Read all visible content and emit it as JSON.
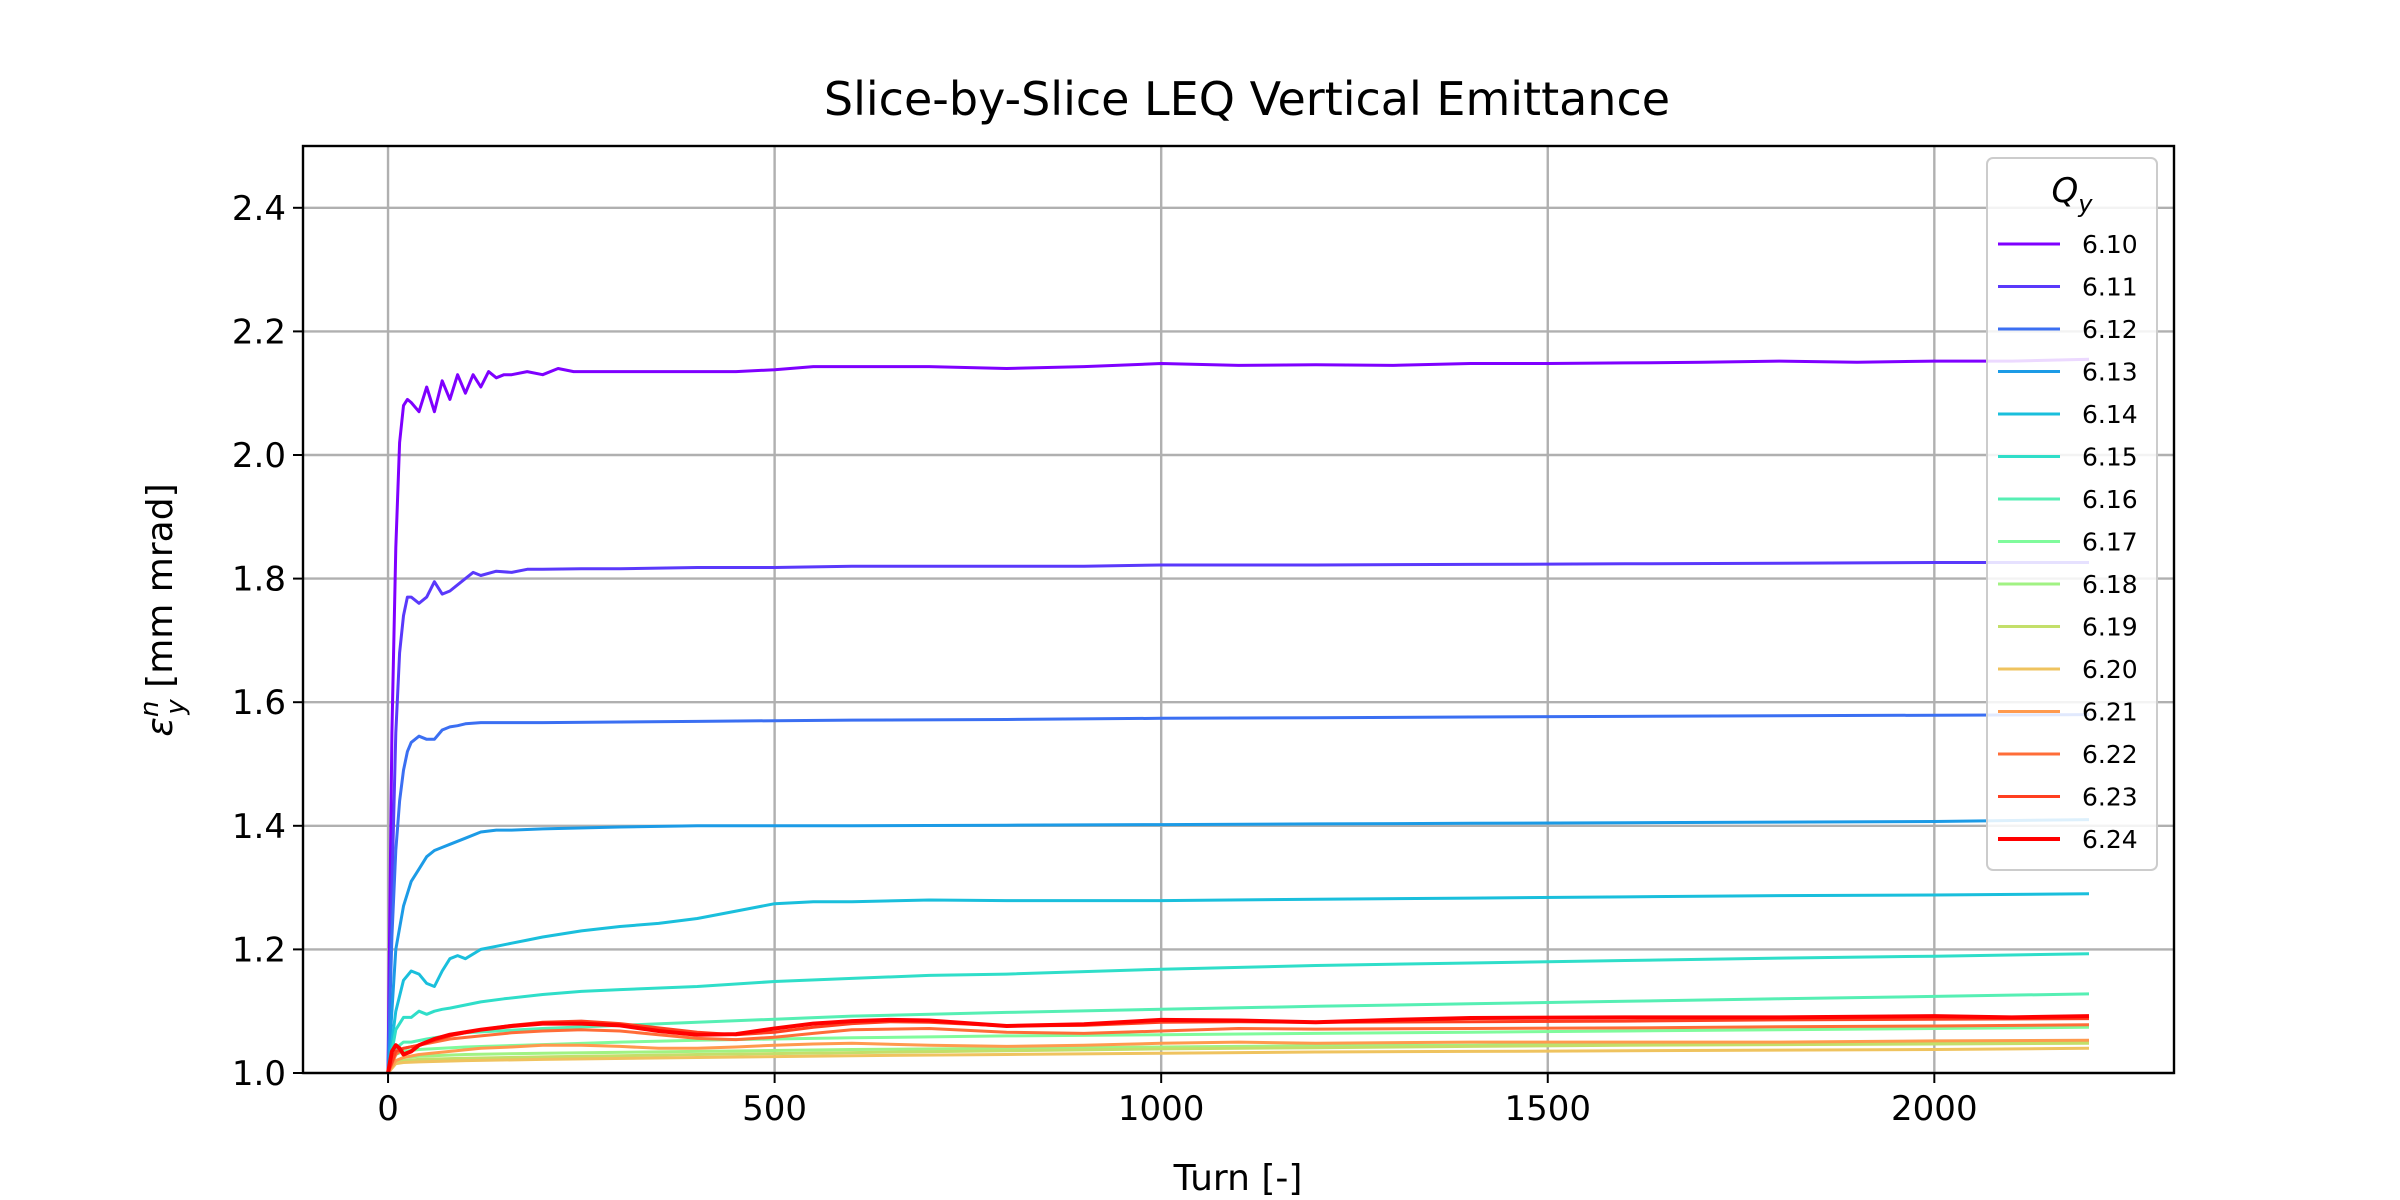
{
  "chart_data": {
    "type": "line",
    "title": "Slice-by-Slice LEQ Vertical Emittance",
    "xlabel": "Turn [-]",
    "ylabel_main": "ε",
    "ylabel_sup": "n",
    "ylabel_sub": "y",
    "ylabel_unit": " [mm mrad]",
    "xlim": [
      -110,
      2310
    ],
    "ylim": [
      1.0,
      2.5
    ],
    "xticks": [
      0,
      500,
      1000,
      1500,
      2000
    ],
    "yticks": [
      1.0,
      1.2,
      1.4,
      1.6,
      1.8,
      2.0,
      2.2,
      2.4
    ],
    "xtick_labels": [
      "0",
      "500",
      "1000",
      "1500",
      "2000"
    ],
    "ytick_labels": [
      "1.0",
      "1.2",
      "1.4",
      "1.6",
      "1.8",
      "2.0",
      "2.2",
      "2.4"
    ],
    "grid": true,
    "legend": {
      "title_main": "Q",
      "title_sub": "y",
      "placement": "upper right"
    },
    "series": [
      {
        "name": "6.10",
        "color": "#7f00ff",
        "x": [
          0,
          5,
          10,
          15,
          20,
          25,
          30,
          40,
          50,
          60,
          70,
          80,
          90,
          100,
          110,
          120,
          130,
          140,
          150,
          160,
          180,
          200,
          220,
          240,
          260,
          280,
          300,
          350,
          400,
          450,
          500,
          550,
          600,
          700,
          800,
          900,
          1000,
          1100,
          1200,
          1300,
          1400,
          1500,
          1600,
          1700,
          1800,
          1900,
          2000,
          2100,
          2200
        ],
        "y": [
          1.0,
          1.55,
          1.85,
          2.02,
          2.08,
          2.09,
          2.085,
          2.07,
          2.11,
          2.07,
          2.12,
          2.09,
          2.13,
          2.1,
          2.13,
          2.11,
          2.135,
          2.125,
          2.13,
          2.13,
          2.135,
          2.13,
          2.14,
          2.135,
          2.135,
          2.135,
          2.135,
          2.135,
          2.135,
          2.135,
          2.138,
          2.143,
          2.143,
          2.143,
          2.14,
          2.143,
          2.148,
          2.145,
          2.146,
          2.145,
          2.148,
          2.148,
          2.149,
          2.15,
          2.152,
          2.15,
          2.152,
          2.152,
          2.155
        ]
      },
      {
        "name": "6.11",
        "color": "#5a39fb",
        "x": [
          0,
          5,
          10,
          15,
          20,
          25,
          30,
          40,
          50,
          60,
          70,
          80,
          90,
          100,
          110,
          120,
          140,
          160,
          180,
          200,
          250,
          300,
          400,
          500,
          600,
          700,
          800,
          900,
          1000,
          1200,
          1400,
          1600,
          1800,
          2000,
          2200
        ],
        "y": [
          1.0,
          1.3,
          1.55,
          1.68,
          1.74,
          1.77,
          1.77,
          1.76,
          1.77,
          1.795,
          1.775,
          1.78,
          1.79,
          1.8,
          1.81,
          1.805,
          1.812,
          1.81,
          1.815,
          1.815,
          1.816,
          1.816,
          1.818,
          1.818,
          1.82,
          1.82,
          1.82,
          1.82,
          1.822,
          1.822,
          1.823,
          1.824,
          1.825,
          1.826,
          1.826
        ]
      },
      {
        "name": "6.12",
        "color": "#3b6ff2",
        "x": [
          0,
          5,
          10,
          15,
          20,
          25,
          30,
          40,
          50,
          60,
          70,
          80,
          90,
          100,
          120,
          150,
          200,
          300,
          400,
          500,
          600,
          800,
          1000,
          1200,
          1400,
          1600,
          1800,
          2000,
          2200
        ],
        "y": [
          1.0,
          1.22,
          1.36,
          1.44,
          1.49,
          1.52,
          1.535,
          1.545,
          1.54,
          1.54,
          1.555,
          1.56,
          1.562,
          1.565,
          1.567,
          1.567,
          1.567,
          1.568,
          1.569,
          1.57,
          1.571,
          1.572,
          1.574,
          1.575,
          1.576,
          1.577,
          1.578,
          1.579,
          1.58
        ]
      },
      {
        "name": "6.13",
        "color": "#1c9be6",
        "x": [
          0,
          10,
          20,
          30,
          40,
          50,
          60,
          70,
          80,
          100,
          120,
          140,
          160,
          200,
          300,
          400,
          500,
          600,
          800,
          1000,
          1200,
          1400,
          1600,
          1800,
          2000,
          2200
        ],
        "y": [
          1.0,
          1.2,
          1.27,
          1.31,
          1.33,
          1.35,
          1.36,
          1.365,
          1.37,
          1.38,
          1.39,
          1.393,
          1.393,
          1.395,
          1.398,
          1.4,
          1.4,
          1.4,
          1.401,
          1.402,
          1.403,
          1.404,
          1.405,
          1.406,
          1.407,
          1.41
        ]
      },
      {
        "name": "6.14",
        "color": "#1abfdc",
        "x": [
          0,
          10,
          20,
          30,
          40,
          50,
          60,
          70,
          80,
          90,
          100,
          120,
          140,
          160,
          180,
          200,
          250,
          300,
          350,
          400,
          450,
          500,
          550,
          600,
          700,
          800,
          900,
          1000,
          1200,
          1400,
          1600,
          1800,
          2000,
          2200
        ],
        "y": [
          1.0,
          1.1,
          1.15,
          1.165,
          1.16,
          1.145,
          1.14,
          1.165,
          1.185,
          1.19,
          1.185,
          1.2,
          1.205,
          1.21,
          1.215,
          1.22,
          1.23,
          1.237,
          1.242,
          1.25,
          1.262,
          1.274,
          1.277,
          1.277,
          1.28,
          1.279,
          1.279,
          1.279,
          1.281,
          1.283,
          1.285,
          1.287,
          1.288,
          1.29
        ]
      },
      {
        "name": "6.15",
        "color": "#2fdec9",
        "x": [
          0,
          10,
          20,
          30,
          40,
          50,
          60,
          70,
          80,
          100,
          120,
          150,
          200,
          250,
          300,
          400,
          500,
          600,
          700,
          800,
          1000,
          1200,
          1400,
          1600,
          1800,
          2000,
          2200
        ],
        "y": [
          1.0,
          1.07,
          1.09,
          1.09,
          1.1,
          1.095,
          1.1,
          1.103,
          1.105,
          1.11,
          1.115,
          1.12,
          1.127,
          1.132,
          1.135,
          1.14,
          1.148,
          1.153,
          1.158,
          1.16,
          1.168,
          1.174,
          1.178,
          1.182,
          1.186,
          1.189,
          1.193
        ]
      },
      {
        "name": "6.16",
        "color": "#56efb4",
        "x": [
          0,
          10,
          20,
          30,
          50,
          100,
          200,
          300,
          400,
          500,
          600,
          800,
          1000,
          1200,
          1400,
          1600,
          1800,
          2000,
          2200
        ],
        "y": [
          1.0,
          1.04,
          1.05,
          1.05,
          1.055,
          1.065,
          1.072,
          1.077,
          1.082,
          1.087,
          1.092,
          1.098,
          1.103,
          1.108,
          1.112,
          1.116,
          1.12,
          1.124,
          1.128
        ]
      },
      {
        "name": "6.17",
        "color": "#80fb9c",
        "x": [
          0,
          10,
          20,
          40,
          100,
          200,
          300,
          400,
          500,
          600,
          800,
          1000,
          1200,
          1400,
          1600,
          1800,
          2000,
          2200
        ],
        "y": [
          1.0,
          1.03,
          1.035,
          1.038,
          1.042,
          1.046,
          1.05,
          1.053,
          1.055,
          1.057,
          1.06,
          1.062,
          1.064,
          1.066,
          1.068,
          1.07,
          1.072,
          1.074
        ]
      },
      {
        "name": "6.18",
        "color": "#a1f283",
        "x": [
          0,
          10,
          20,
          40,
          100,
          200,
          400,
          600,
          800,
          1000,
          1200,
          1400,
          1600,
          1800,
          2000,
          2200
        ],
        "y": [
          1.0,
          1.02,
          1.025,
          1.027,
          1.03,
          1.032,
          1.035,
          1.038,
          1.04,
          1.042,
          1.044,
          1.045,
          1.047,
          1.049,
          1.05,
          1.052
        ]
      },
      {
        "name": "6.19",
        "color": "#c3df6a",
        "x": [
          0,
          10,
          20,
          40,
          100,
          200,
          400,
          600,
          800,
          1000,
          1200,
          1400,
          1600,
          1800,
          2000,
          2200
        ],
        "y": [
          1.0,
          1.018,
          1.02,
          1.022,
          1.024,
          1.026,
          1.03,
          1.033,
          1.036,
          1.039,
          1.041,
          1.043,
          1.045,
          1.046,
          1.047,
          1.048
        ]
      },
      {
        "name": "6.20",
        "color": "#efc35f",
        "x": [
          0,
          10,
          20,
          40,
          100,
          200,
          400,
          600,
          800,
          1000,
          1200,
          1400,
          1600,
          1800,
          2000,
          2200
        ],
        "y": [
          1.0,
          1.015,
          1.017,
          1.018,
          1.02,
          1.022,
          1.025,
          1.028,
          1.03,
          1.032,
          1.034,
          1.035,
          1.036,
          1.037,
          1.038,
          1.04
        ]
      },
      {
        "name": "6.21",
        "color": "#ff9a4e",
        "x": [
          0,
          10,
          20,
          40,
          80,
          120,
          160,
          200,
          250,
          300,
          350,
          400,
          450,
          500,
          550,
          600,
          700,
          800,
          900,
          1000,
          1100,
          1200,
          1400,
          1600,
          1800,
          2000,
          2200
        ],
        "y": [
          1.0,
          1.02,
          1.025,
          1.03,
          1.035,
          1.04,
          1.042,
          1.045,
          1.045,
          1.043,
          1.04,
          1.04,
          1.042,
          1.045,
          1.047,
          1.048,
          1.045,
          1.043,
          1.045,
          1.048,
          1.05,
          1.048,
          1.05,
          1.05,
          1.05,
          1.052,
          1.053
        ]
      },
      {
        "name": "6.22",
        "color": "#ff6d38",
        "x": [
          0,
          10,
          20,
          40,
          80,
          120,
          160,
          200,
          250,
          300,
          350,
          400,
          450,
          500,
          550,
          600,
          700,
          800,
          900,
          1000,
          1100,
          1200,
          1400,
          1600,
          1800,
          2000,
          2200
        ],
        "y": [
          1.0,
          1.03,
          1.04,
          1.045,
          1.055,
          1.06,
          1.065,
          1.068,
          1.07,
          1.068,
          1.062,
          1.056,
          1.054,
          1.058,
          1.064,
          1.07,
          1.072,
          1.066,
          1.064,
          1.068,
          1.072,
          1.071,
          1.072,
          1.073,
          1.075,
          1.076,
          1.078
        ]
      },
      {
        "name": "6.23",
        "color": "#ff3f20",
        "x": [
          0,
          10,
          20,
          40,
          80,
          120,
          160,
          200,
          250,
          300,
          350,
          400,
          450,
          500,
          550,
          600,
          650,
          700,
          800,
          900,
          1000,
          1100,
          1200,
          1400,
          1600,
          1800,
          2000,
          2200
        ],
        "y": [
          1.0,
          1.035,
          1.04,
          1.045,
          1.06,
          1.07,
          1.077,
          1.082,
          1.084,
          1.08,
          1.073,
          1.066,
          1.062,
          1.066,
          1.074,
          1.08,
          1.083,
          1.082,
          1.076,
          1.077,
          1.082,
          1.083,
          1.082,
          1.083,
          1.084,
          1.086,
          1.087,
          1.088
        ]
      },
      {
        "name": "6.24",
        "color": "#ff0000",
        "x": [
          0,
          5,
          10,
          15,
          20,
          30,
          40,
          60,
          80,
          120,
          160,
          200,
          250,
          300,
          350,
          400,
          450,
          500,
          550,
          600,
          650,
          700,
          800,
          900,
          1000,
          1100,
          1200,
          1300,
          1400,
          1600,
          1800,
          2000,
          2100,
          2200
        ],
        "y": [
          1.0,
          1.035,
          1.045,
          1.04,
          1.03,
          1.035,
          1.045,
          1.055,
          1.062,
          1.07,
          1.076,
          1.08,
          1.08,
          1.077,
          1.068,
          1.062,
          1.063,
          1.072,
          1.08,
          1.084,
          1.086,
          1.085,
          1.076,
          1.079,
          1.086,
          1.085,
          1.082,
          1.086,
          1.089,
          1.09,
          1.09,
          1.092,
          1.09,
          1.092
        ]
      }
    ]
  }
}
